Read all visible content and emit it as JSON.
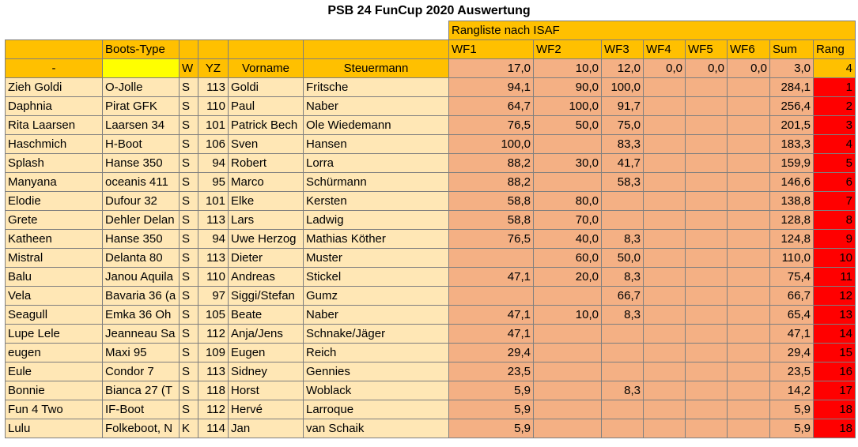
{
  "title": "PSB 24 FunCup 2020 Auswertung",
  "header": {
    "group_label": "Rangliste nach ISAF",
    "boots_type": "Boots-Type",
    "dash": "-",
    "w": "W",
    "yz": "YZ",
    "vorname": "Vorname",
    "steuermann": "Steuermann",
    "wf1": "WF1",
    "wf2": "WF2",
    "wf3": "WF3",
    "wf4": "WF4",
    "wf5": "WF5",
    "wf6": "WF6",
    "sum": "Sum",
    "rang": "Rang"
  },
  "weights": [
    "17,0",
    "10,0",
    "12,0",
    "0,0",
    "0,0",
    "0,0",
    "3,0",
    "4"
  ],
  "rows": [
    {
      "name": "Zieh Goldi",
      "type": "O-Jolle",
      "w": "S",
      "yz": "113",
      "vorname": "Goldi",
      "steuermann": "Fritsche",
      "wf1": "94,1",
      "wf2": "90,0",
      "wf3": "100,0",
      "wf4": "",
      "wf5": "",
      "wf6": "",
      "sum": "284,1",
      "rang": "1"
    },
    {
      "name": "Daphnia",
      "type": "Pirat GFK",
      "w": "S",
      "yz": "110",
      "vorname": "Paul",
      "steuermann": "Naber",
      "wf1": "64,7",
      "wf2": "100,0",
      "wf3": "91,7",
      "wf4": "",
      "wf5": "",
      "wf6": "",
      "sum": "256,4",
      "rang": "2"
    },
    {
      "name": "Rita Laarsen",
      "type": "Laarsen 34",
      "w": "S",
      "yz": "101",
      "vorname": "Patrick Bech",
      "steuermann": "Ole Wiedemann",
      "wf1": "76,5",
      "wf2": "50,0",
      "wf3": "75,0",
      "wf4": "",
      "wf5": "",
      "wf6": "",
      "sum": "201,5",
      "rang": "3"
    },
    {
      "name": "Haschmich",
      "type": "H-Boot",
      "w": "S",
      "yz": "106",
      "vorname": "Sven",
      "steuermann": "Hansen",
      "wf1": "100,0",
      "wf2": "",
      "wf3": "83,3",
      "wf4": "",
      "wf5": "",
      "wf6": "",
      "sum": "183,3",
      "rang": "4"
    },
    {
      "name": "Splash",
      "type": "Hanse 350",
      "w": "S",
      "yz": "94",
      "vorname": "Robert",
      "steuermann": "Lorra",
      "wf1": "88,2",
      "wf2": "30,0",
      "wf3": "41,7",
      "wf4": "",
      "wf5": "",
      "wf6": "",
      "sum": "159,9",
      "rang": "5"
    },
    {
      "name": "Manyana",
      "type": "oceanis 411",
      "w": "S",
      "yz": "95",
      "vorname": "Marco",
      "steuermann": "Schürmann",
      "wf1": "88,2",
      "wf2": "",
      "wf3": "58,3",
      "wf4": "",
      "wf5": "",
      "wf6": "",
      "sum": "146,6",
      "rang": "6"
    },
    {
      "name": "Elodie",
      "type": "Dufour 32",
      "w": "S",
      "yz": "101",
      "vorname": "Elke",
      "steuermann": "Kersten",
      "wf1": "58,8",
      "wf2": "80,0",
      "wf3": "",
      "wf4": "",
      "wf5": "",
      "wf6": "",
      "sum": "138,8",
      "rang": "7"
    },
    {
      "name": "Grete",
      "type": "Dehler Delan",
      "w": "S",
      "yz": "113",
      "vorname": "Lars",
      "steuermann": "Ladwig",
      "wf1": "58,8",
      "wf2": "70,0",
      "wf3": "",
      "wf4": "",
      "wf5": "",
      "wf6": "",
      "sum": "128,8",
      "rang": "8"
    },
    {
      "name": "Katheen",
      "type": "Hanse 350",
      "w": "S",
      "yz": "94",
      "vorname": "Uwe Herzog",
      "steuermann": "Mathias Köther",
      "wf1": "76,5",
      "wf2": "40,0",
      "wf3": "8,3",
      "wf4": "",
      "wf5": "",
      "wf6": "",
      "sum": "124,8",
      "rang": "9"
    },
    {
      "name": "Mistral",
      "type": "Delanta 80",
      "w": "S",
      "yz": "113",
      "vorname": "Dieter",
      "steuermann": "Muster",
      "wf1": "",
      "wf2": "60,0",
      "wf3": "50,0",
      "wf4": "",
      "wf5": "",
      "wf6": "",
      "sum": "110,0",
      "rang": "10"
    },
    {
      "name": "Balu",
      "type": "Janou Aquila",
      "w": "S",
      "yz": "110",
      "vorname": "Andreas",
      "steuermann": "Stickel",
      "wf1": "47,1",
      "wf2": "20,0",
      "wf3": "8,3",
      "wf4": "",
      "wf5": "",
      "wf6": "",
      "sum": "75,4",
      "rang": "11"
    },
    {
      "name": "Vela",
      "type": "Bavaria 36 (a",
      "w": "S",
      "yz": "97",
      "vorname": "Siggi/Stefan",
      "steuermann": "Gumz",
      "wf1": "",
      "wf2": "",
      "wf3": "66,7",
      "wf4": "",
      "wf5": "",
      "wf6": "",
      "sum": "66,7",
      "rang": "12"
    },
    {
      "name": "Seagull",
      "type": "Emka 36 Oh",
      "w": "S",
      "yz": "105",
      "vorname": "Beate",
      "steuermann": "Naber",
      "wf1": "47,1",
      "wf2": "10,0",
      "wf3": "8,3",
      "wf4": "",
      "wf5": "",
      "wf6": "",
      "sum": "65,4",
      "rang": "13"
    },
    {
      "name": "Lupe Lele",
      "type": "Jeanneau Sa",
      "w": "S",
      "yz": "112",
      "vorname": "Anja/Jens",
      "steuermann": "Schnake/Jäger",
      "wf1": "47,1",
      "wf2": "",
      "wf3": "",
      "wf4": "",
      "wf5": "",
      "wf6": "",
      "sum": "47,1",
      "rang": "14"
    },
    {
      "name": "eugen",
      "type": "Maxi 95",
      "w": "S",
      "yz": "109",
      "vorname": "Eugen",
      "steuermann": "Reich",
      "wf1": "29,4",
      "wf2": "",
      "wf3": "",
      "wf4": "",
      "wf5": "",
      "wf6": "",
      "sum": "29,4",
      "rang": "15"
    },
    {
      "name": "Eule",
      "type": "Condor 7",
      "w": "S",
      "yz": "113",
      "vorname": "Sidney",
      "steuermann": "Gennies",
      "wf1": "23,5",
      "wf2": "",
      "wf3": "",
      "wf4": "",
      "wf5": "",
      "wf6": "",
      "sum": "23,5",
      "rang": "16"
    },
    {
      "name": "Bonnie",
      "type": "Bianca 27  (T",
      "w": "S",
      "yz": "118",
      "vorname": "Horst",
      "steuermann": "Woblack",
      "wf1": "5,9",
      "wf2": "",
      "wf3": "8,3",
      "wf4": "",
      "wf5": "",
      "wf6": "",
      "sum": "14,2",
      "rang": "17"
    },
    {
      "name": "Fun 4 Two",
      "type": "IF-Boot",
      "w": "S",
      "yz": "112",
      "vorname": "Hervé",
      "steuermann": "Larroque",
      "wf1": "5,9",
      "wf2": "",
      "wf3": "",
      "wf4": "",
      "wf5": "",
      "wf6": "",
      "sum": "5,9",
      "rang": "18"
    },
    {
      "name": "Lulu",
      "type": "Folkeboot, N",
      "w": "K",
      "yz": "114",
      "vorname": "Jan",
      "steuermann": "van Schaik",
      "wf1": "5,9",
      "wf2": "",
      "wf3": "",
      "wf4": "",
      "wf5": "",
      "wf6": "",
      "sum": "5,9",
      "rang": "18"
    }
  ],
  "colors": {
    "header": "#ffc000",
    "row": "#ffe7b5",
    "score": "#f4b084",
    "rank": "#ff0000",
    "input": "#ffff00"
  }
}
